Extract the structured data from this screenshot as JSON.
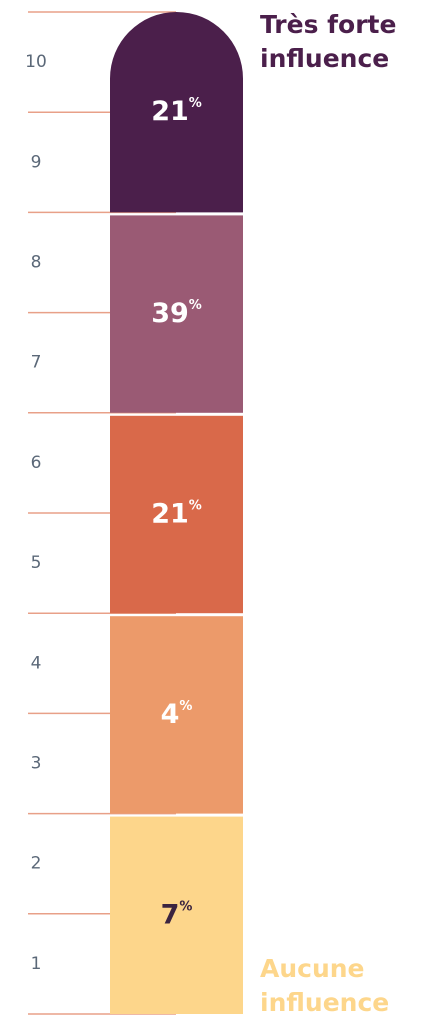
{
  "chart_data": {
    "type": "scale-bar",
    "ylim": [
      0.5,
      10.5
    ],
    "yticks": [
      1,
      2,
      3,
      4,
      5,
      6,
      7,
      8,
      9,
      10
    ],
    "unit": "%",
    "segments": [
      {
        "value": 7,
        "color": "#fdd68b",
        "label_color": "#3b2440"
      },
      {
        "value": 4,
        "color": "#ec9a6a",
        "label_color": "#ffffff"
      },
      {
        "value": 21,
        "color": "#d9694a",
        "label_color": "#ffffff"
      },
      {
        "value": 39,
        "color": "#9a5a74",
        "label_color": "#ffffff"
      },
      {
        "value": 21,
        "color": "#4b1f4b",
        "label_color": "#ffffff"
      }
    ],
    "annotations": [
      {
        "lines": [
          "Très forte",
          "influence"
        ],
        "color": "#4b1f4b"
      },
      {
        "lines": [
          "Aucune",
          "influence"
        ],
        "color": "#fdd68b"
      }
    ],
    "grid_color": "#e8a088",
    "tick_color": "#5b6878"
  }
}
